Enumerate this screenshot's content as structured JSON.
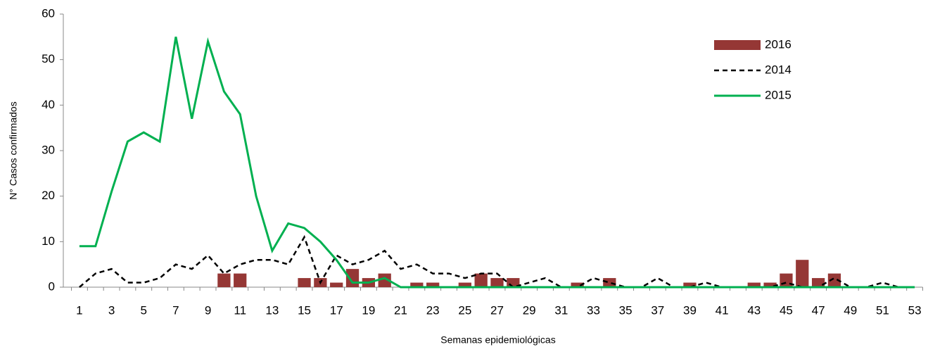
{
  "chart_data": {
    "type": "bar-line",
    "y_label": "N° Casos confirmados",
    "x_label": "Semanas epidemiológicas",
    "categories": [
      1,
      null,
      3,
      null,
      5,
      null,
      7,
      null,
      9,
      null,
      11,
      null,
      13,
      null,
      15,
      null,
      17,
      null,
      19,
      null,
      21,
      null,
      23,
      null,
      25,
      null,
      27,
      null,
      29,
      null,
      31,
      null,
      33,
      null,
      35,
      null,
      37,
      null,
      39,
      null,
      41,
      null,
      43,
      null,
      45,
      null,
      47,
      null,
      49,
      null,
      51,
      null,
      53
    ],
    "series": [
      {
        "name": "2016",
        "type": "bar",
        "color": "#953735",
        "values": [
          0,
          0,
          0,
          0,
          0,
          0,
          0,
          0,
          0,
          3,
          3,
          0,
          0,
          0,
          2,
          2,
          1,
          4,
          2,
          3,
          0,
          1,
          1,
          0,
          1,
          3,
          2,
          2,
          0,
          0,
          0,
          1,
          0,
          2,
          0,
          0,
          0,
          0,
          1,
          0,
          0,
          0,
          1,
          1,
          3,
          6,
          2,
          3,
          0,
          0,
          0,
          0,
          0
        ]
      },
      {
        "name": "2014",
        "type": "line",
        "color": "#000000",
        "dash": true,
        "values": [
          0,
          3,
          4,
          1,
          1,
          2,
          5,
          4,
          7,
          3,
          5,
          6,
          6,
          5,
          11,
          1,
          7,
          5,
          6,
          8,
          4,
          5,
          3,
          3,
          2,
          3,
          3,
          0,
          1,
          2,
          0,
          0,
          2,
          1,
          0,
          0,
          2,
          0,
          0,
          1,
          0,
          0,
          0,
          0,
          1,
          0,
          0,
          2,
          0,
          0,
          1,
          0,
          0
        ]
      },
      {
        "name": "2015",
        "type": "line",
        "color": "#00b050",
        "dash": false,
        "values": [
          9,
          9,
          21,
          32,
          34,
          32,
          55,
          37,
          54,
          43,
          38,
          20,
          8,
          14,
          13,
          10,
          6,
          1,
          1,
          2,
          0,
          0,
          0,
          0,
          0,
          0,
          0,
          0,
          0,
          0,
          0,
          0,
          0,
          0,
          0,
          0,
          0,
          0,
          0,
          0,
          0,
          0,
          0,
          0,
          0,
          0,
          0,
          0,
          0,
          0,
          0,
          0,
          0
        ]
      }
    ],
    "ylim": [
      0,
      60
    ],
    "yticks": [
      0,
      10,
      20,
      30,
      40,
      50,
      60
    ],
    "legend": "upper-right"
  }
}
